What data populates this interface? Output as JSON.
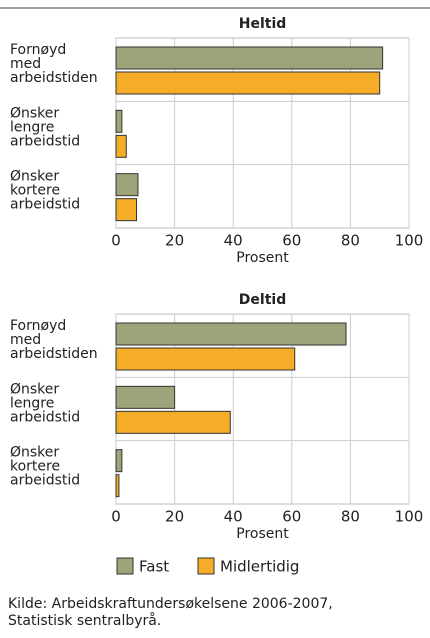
{
  "chart_data": [
    {
      "type": "barh",
      "title": "Heltid",
      "categories": [
        "Fornøyd med arbeidstiden",
        "Ønsker lengre arbeidstid",
        "Ønsker kortere arbeidstid"
      ],
      "series": [
        {
          "name": "Fast",
          "color": "#9ea37a",
          "values": [
            91,
            2,
            7.5
          ]
        },
        {
          "name": "Midlertidig",
          "color": "#f5ad29",
          "values": [
            90,
            3.5,
            7
          ]
        }
      ],
      "xlim": [
        0,
        100
      ],
      "xticks": [
        0,
        20,
        40,
        60,
        80,
        100
      ],
      "xlabel": "Prosent",
      "grid": true
    },
    {
      "type": "barh",
      "title": "Deltid",
      "categories": [
        "Fornøyd med arbeidstiden",
        "Ønsker lengre arbeidstid",
        "Ønsker kortere arbeidstid"
      ],
      "series": [
        {
          "name": "Fast",
          "color": "#9ea37a",
          "values": [
            78.5,
            20,
            2
          ]
        },
        {
          "name": "Midlertidig",
          "color": "#f5ad29",
          "values": [
            61,
            39,
            1
          ]
        }
      ],
      "xlim": [
        0,
        100
      ],
      "xticks": [
        0,
        20,
        40,
        60,
        80,
        100
      ],
      "xlabel": "Prosent",
      "grid": true
    }
  ],
  "source": [
    "Kilde: Arbeidskraftundersøkelsene 2006-2007,",
    "Statistisk sentralbyrå."
  ]
}
